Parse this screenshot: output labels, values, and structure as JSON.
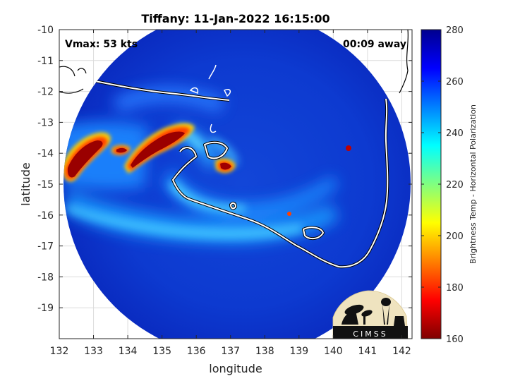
{
  "chart_data": {
    "type": "heatmap",
    "title": "Tiffany: 11-Jan-2022 16:15:00",
    "xlabel": "longitude",
    "ylabel": "latitude",
    "xlim": [
      132,
      142.3
    ],
    "ylim": [
      -20,
      -10
    ],
    "x_ticks": [
      "132",
      "133",
      "134",
      "135",
      "136",
      "137",
      "138",
      "139",
      "140",
      "141",
      "142"
    ],
    "y_ticks": [
      "-10",
      "-11",
      "-12",
      "-13",
      "-14",
      "-15",
      "-16",
      "-17",
      "-18",
      "-19"
    ],
    "grid": true,
    "annotations": {
      "vmax": "Vmax: 53 kts",
      "away": "00:09 away"
    },
    "colorbar": {
      "label": "Brightness Temp - Horizontal Polarization",
      "min": 160,
      "max": 280,
      "ticks": [
        "280",
        "260",
        "240",
        "220",
        "200",
        "180",
        "160"
      ],
      "colormap": [
        "#7f0000",
        "#ff0000",
        "#ff8000",
        "#ffff00",
        "#80ff80",
        "#00ffff",
        "#0080ff",
        "#0000ff",
        "#00008f"
      ]
    },
    "swath": {
      "center_lon": 136.85,
      "center_lat": -15.0,
      "radius_deg": 5.0
    },
    "features": [
      {
        "name": "storm core",
        "lon": 137.0,
        "lat": -14.5,
        "value": 175
      },
      {
        "name": "rain band west",
        "lon": 133.0,
        "lat": -14.0,
        "value": 168
      },
      {
        "name": "rain band central",
        "lon": 135.2,
        "lat": -13.8,
        "value": 170
      }
    ]
  },
  "logo": {
    "text": "CIMSS"
  }
}
